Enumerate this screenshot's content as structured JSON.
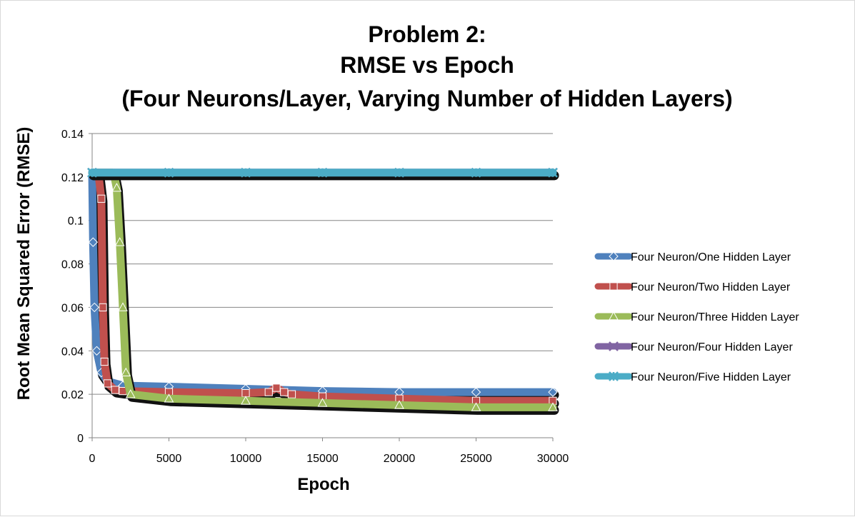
{
  "chart_data": {
    "type": "line",
    "title_lines": [
      "Problem 2:",
      "RMSE vs Epoch",
      "(Four Neurons/Layer, Varying Number of Hidden Layers)"
    ],
    "xlabel": "Epoch",
    "ylabel": "Root Mean Squared Error (RMSE)",
    "xlim": [
      0,
      30000
    ],
    "ylim": [
      0,
      0.14
    ],
    "x_ticks": [
      0,
      5000,
      10000,
      15000,
      20000,
      25000,
      30000
    ],
    "x_tick_labels": [
      "0",
      "5000",
      "10000",
      "15000",
      "20000",
      "25000",
      "30000"
    ],
    "y_ticks": [
      0,
      0.02,
      0.04,
      0.06,
      0.08,
      0.1,
      0.12,
      0.14
    ],
    "y_tick_labels": [
      "0",
      "0.02",
      "0.04",
      "0.06",
      "0.08",
      "0.1",
      "0.12",
      "0.14"
    ],
    "grid": "horizontal",
    "legend_position": "right",
    "series": [
      {
        "name": "Four Neuron/One Hidden Layer",
        "color": "#4f81bd",
        "marker": "diamond",
        "x": [
          0,
          60,
          150,
          300,
          600,
          1000,
          2000,
          5000,
          10000,
          15000,
          20000,
          25000,
          30000
        ],
        "y": [
          0.122,
          0.09,
          0.06,
          0.04,
          0.03,
          0.026,
          0.024,
          0.0235,
          0.0225,
          0.0215,
          0.021,
          0.021,
          0.021
        ]
      },
      {
        "name": "Four Neuron/Two Hidden Layer",
        "color": "#c0504d",
        "marker": "square",
        "x": [
          0,
          400,
          600,
          700,
          800,
          1000,
          1500,
          2000,
          5000,
          10000,
          11500,
          12000,
          12500,
          13000,
          15000,
          20000,
          25000,
          30000
        ],
        "y": [
          0.122,
          0.122,
          0.11,
          0.06,
          0.035,
          0.025,
          0.022,
          0.0215,
          0.021,
          0.0205,
          0.021,
          0.023,
          0.021,
          0.02,
          0.019,
          0.018,
          0.017,
          0.017
        ]
      },
      {
        "name": "Four Neuron/Three Hidden Layer",
        "color": "#9bbb59",
        "marker": "triangle",
        "x": [
          0,
          1400,
          1600,
          1800,
          2000,
          2200,
          2500,
          5000,
          10000,
          15000,
          20000,
          25000,
          30000
        ],
        "y": [
          0.122,
          0.122,
          0.115,
          0.09,
          0.06,
          0.03,
          0.02,
          0.018,
          0.017,
          0.016,
          0.015,
          0.014,
          0.014
        ]
      },
      {
        "name": "Four Neuron/Four Hidden Layer",
        "color": "#8064a2",
        "marker": "x",
        "x": [
          0,
          5000,
          10000,
          15000,
          20000,
          25000,
          30000
        ],
        "y": [
          0.122,
          0.122,
          0.122,
          0.122,
          0.122,
          0.122,
          0.122
        ]
      },
      {
        "name": "Four Neuron/Five Hidden Layer",
        "color": "#4bacc6",
        "marker": "star",
        "x": [
          0,
          5000,
          10000,
          15000,
          20000,
          25000,
          30000
        ],
        "y": [
          0.122,
          0.122,
          0.122,
          0.122,
          0.122,
          0.122,
          0.122
        ]
      }
    ]
  }
}
